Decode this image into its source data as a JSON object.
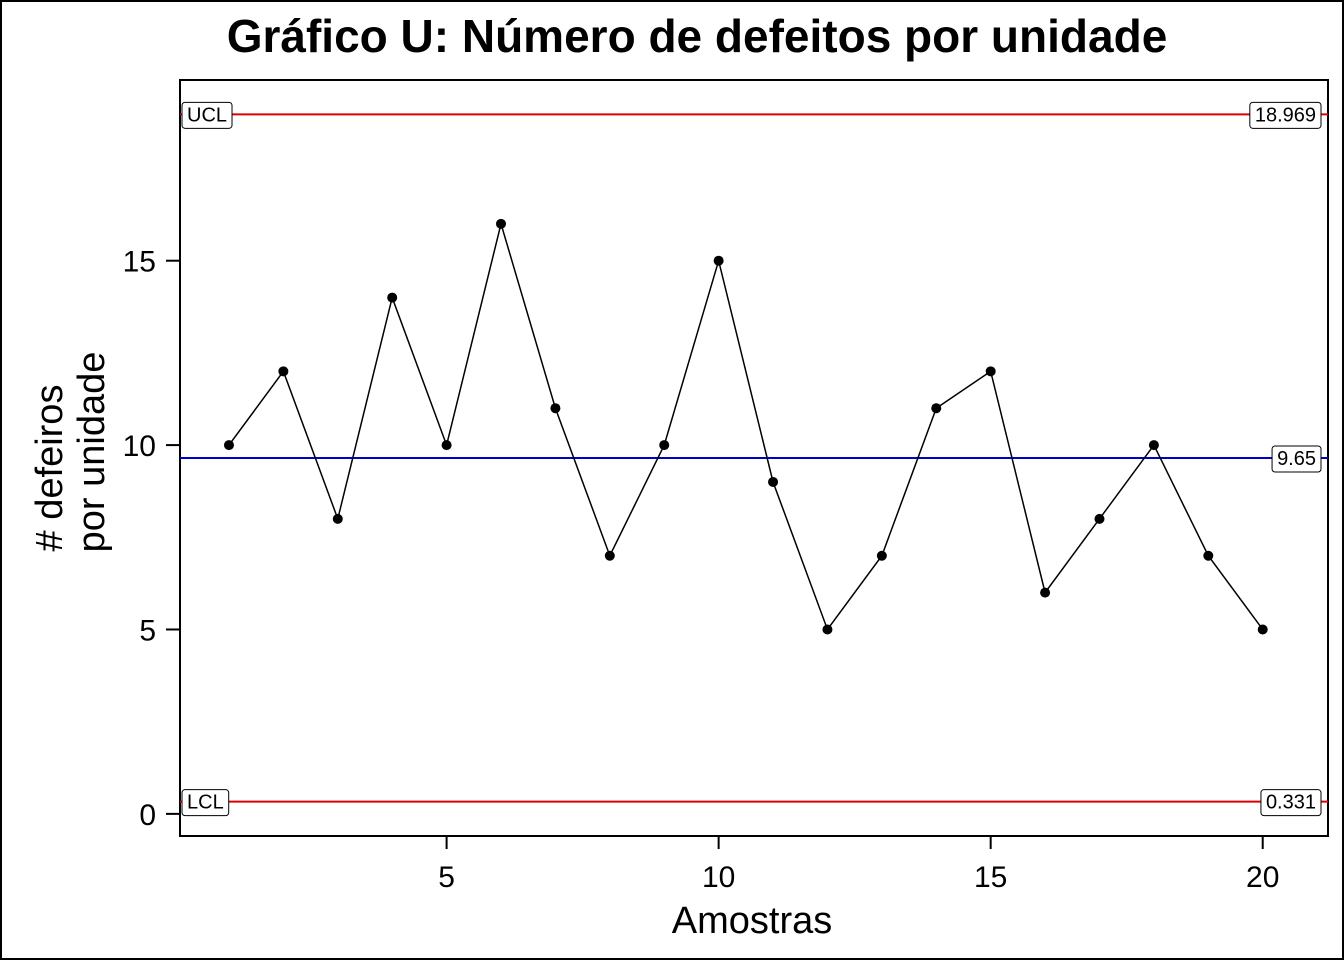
{
  "chart_data": {
    "type": "line",
    "title": "Gráfico U: Número de defeitos por unidade",
    "xlabel": "Amostras",
    "ylabel_lines": [
      "# defeiros",
      "por unidade"
    ],
    "x": [
      1,
      2,
      3,
      4,
      5,
      6,
      7,
      8,
      9,
      10,
      11,
      12,
      13,
      14,
      15,
      16,
      17,
      18,
      19,
      20
    ],
    "values": [
      10,
      12,
      8,
      14,
      10,
      16,
      11,
      7,
      10,
      15,
      9,
      5,
      7,
      11,
      12,
      6,
      8,
      10,
      7,
      5
    ],
    "x_ticks": [
      5,
      10,
      15,
      20
    ],
    "y_ticks": [
      0,
      5,
      10,
      15
    ],
    "xlim": [
      0.1,
      21.2
    ],
    "ylim": [
      -0.6,
      19.9
    ],
    "grid": false,
    "series_color": "#000000",
    "limits": {
      "ucl": {
        "name": "UCL",
        "value": 18.969,
        "label": "18.969",
        "color": "#dd0000"
      },
      "center": {
        "value": 9.65,
        "label": "9.65",
        "color": "#0000cc"
      },
      "lcl": {
        "name": "LCL",
        "value": 0.331,
        "label": "0.331",
        "color": "#dd0000"
      }
    }
  }
}
